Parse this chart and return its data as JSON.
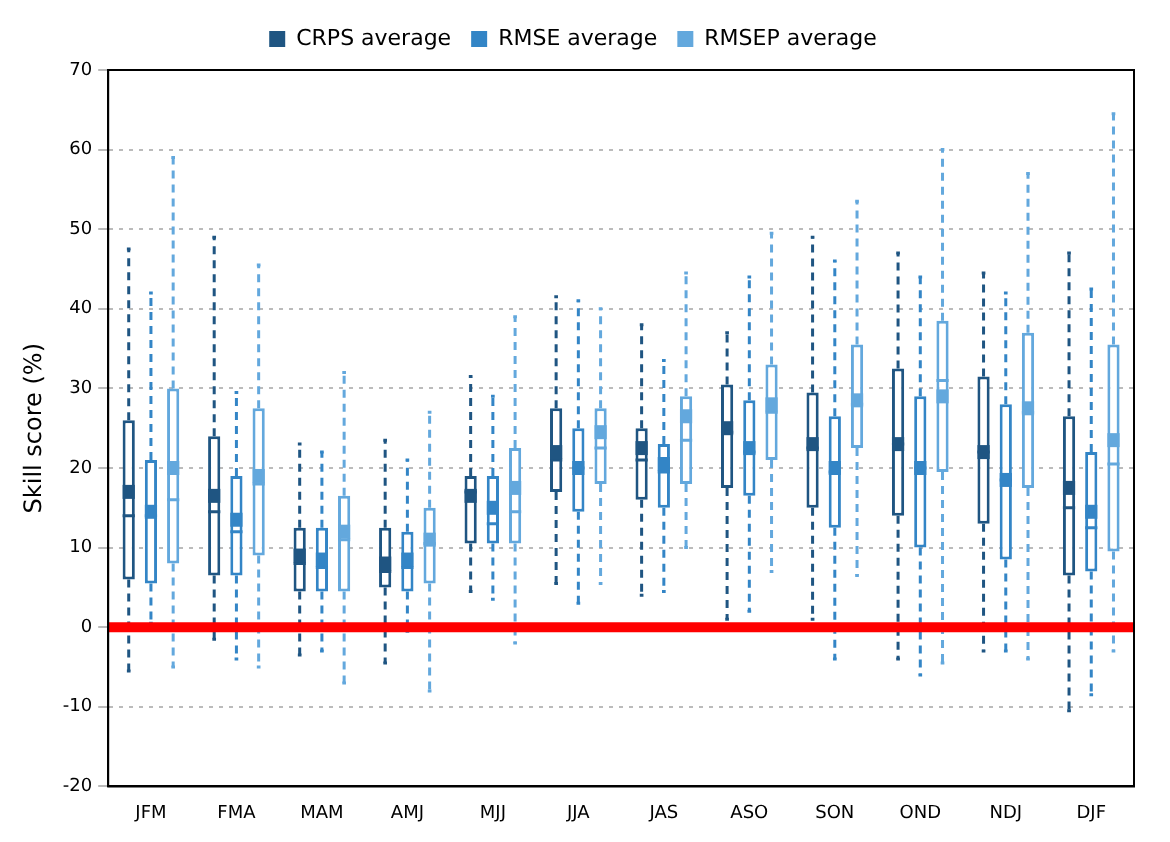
{
  "chart_data": {
    "type": "box",
    "ylabel": "Skill score (%)",
    "categories": [
      "JFM",
      "FMA",
      "MAM",
      "AMJ",
      "MJJ",
      "JJA",
      "JAS",
      "ASO",
      "SON",
      "OND",
      "NDJ",
      "DJF"
    ],
    "series": [
      {
        "name": "CRPS average",
        "color": "#1f5582",
        "boxes": [
          {
            "low": -5.5,
            "q1": 6,
            "median": 14,
            "q3": 26,
            "high": 47.5,
            "mean": 17
          },
          {
            "low": -1.5,
            "q1": 6.5,
            "median": 14.5,
            "q3": 24,
            "high": 49,
            "mean": 16.5
          },
          {
            "low": -3.5,
            "q1": 4.5,
            "median": 8,
            "q3": 12.5,
            "high": 23,
            "mean": 9
          },
          {
            "low": -4.5,
            "q1": 5,
            "median": 7,
            "q3": 12.5,
            "high": 23.5,
            "mean": 8
          },
          {
            "low": 4.5,
            "q1": 10.5,
            "median": 17,
            "q3": 19,
            "high": 31.5,
            "mean": 16.5
          },
          {
            "low": 5.5,
            "q1": 17,
            "median": 21,
            "q3": 27.5,
            "high": 41.5,
            "mean": 22
          },
          {
            "low": 4,
            "q1": 16,
            "median": 21,
            "q3": 25,
            "high": 38,
            "mean": 22.5
          },
          {
            "low": 1,
            "q1": 17.5,
            "median": 24.5,
            "q3": 30.5,
            "high": 37,
            "mean": 25
          },
          {
            "low": 1,
            "q1": 15,
            "median": 22.5,
            "q3": 29.5,
            "high": 49,
            "mean": 23
          },
          {
            "low": -4,
            "q1": 14,
            "median": 23,
            "q3": 32.5,
            "high": 47,
            "mean": 23
          },
          {
            "low": -3,
            "q1": 13,
            "median": 22,
            "q3": 31.5,
            "high": 44.5,
            "mean": 22
          },
          {
            "low": -10.5,
            "q1": 6.5,
            "median": 15,
            "q3": 26.5,
            "high": 47,
            "mean": 17.5
          }
        ]
      },
      {
        "name": "RMSE average",
        "color": "#3385c6",
        "boxes": [
          {
            "low": 0.5,
            "q1": 5.5,
            "median": 14,
            "q3": 21,
            "high": 42,
            "mean": 14.5
          },
          {
            "low": -4,
            "q1": 6.5,
            "median": 12,
            "q3": 19,
            "high": 29.5,
            "mean": 13.5
          },
          {
            "low": -3,
            "q1": 4.5,
            "median": 7.5,
            "q3": 12.5,
            "high": 22,
            "mean": 8.5
          },
          {
            "low": -0.5,
            "q1": 4.5,
            "median": 7.5,
            "q3": 12,
            "high": 21,
            "mean": 8.5
          },
          {
            "low": 3.5,
            "q1": 10.5,
            "median": 13,
            "q3": 19,
            "high": 29,
            "mean": 15
          },
          {
            "low": 3,
            "q1": 14.5,
            "median": 20,
            "q3": 25,
            "high": 41,
            "mean": 20
          },
          {
            "low": 4.5,
            "q1": 15,
            "median": 19.5,
            "q3": 23,
            "high": 33.5,
            "mean": 20.5
          },
          {
            "low": 2,
            "q1": 16.5,
            "median": 22,
            "q3": 28.5,
            "high": 44,
            "mean": 22.5
          },
          {
            "low": -4,
            "q1": 12.5,
            "median": 19.5,
            "q3": 26.5,
            "high": 46,
            "mean": 20
          },
          {
            "low": -6,
            "q1": 10,
            "median": 20,
            "q3": 29,
            "high": 44,
            "mean": 20
          },
          {
            "low": -3,
            "q1": 8.5,
            "median": 18.5,
            "q3": 28,
            "high": 42,
            "mean": 18.5
          },
          {
            "low": -8.5,
            "q1": 7,
            "median": 12.5,
            "q3": 22,
            "high": 42.5,
            "mean": 14.5
          }
        ]
      },
      {
        "name": "RMSEP average",
        "color": "#63a8dd",
        "boxes": [
          {
            "low": -5,
            "q1": 8,
            "median": 16,
            "q3": 30,
            "high": 59,
            "mean": 20
          },
          {
            "low": -5,
            "q1": 9,
            "median": 18,
            "q3": 27.5,
            "high": 45.5,
            "mean": 19
          },
          {
            "low": -7,
            "q1": 4.5,
            "median": 11,
            "q3": 16.5,
            "high": 32,
            "mean": 12
          },
          {
            "low": -8,
            "q1": 5.5,
            "median": 10.5,
            "q3": 15,
            "high": 27,
            "mean": 11
          },
          {
            "low": -2,
            "q1": 10.5,
            "median": 14.5,
            "q3": 22.5,
            "high": 39,
            "mean": 17.5
          },
          {
            "low": 5.5,
            "q1": 18,
            "median": 22.5,
            "q3": 27.5,
            "high": 40,
            "mean": 24.5
          },
          {
            "low": 10,
            "q1": 18,
            "median": 23.5,
            "q3": 29,
            "high": 44.5,
            "mean": 26.5
          },
          {
            "low": 7,
            "q1": 21,
            "median": 27,
            "q3": 33,
            "high": 49.5,
            "mean": 28
          },
          {
            "low": 6.5,
            "q1": 22.5,
            "median": 28,
            "q3": 35.5,
            "high": 53.5,
            "mean": 28.5
          },
          {
            "low": -4.5,
            "q1": 19.5,
            "median": 31,
            "q3": 38.5,
            "high": 60,
            "mean": 29
          },
          {
            "low": -4,
            "q1": 17.5,
            "median": 27,
            "q3": 37,
            "high": 57,
            "mean": 27.5
          },
          {
            "low": -3,
            "q1": 9.5,
            "median": 20.5,
            "q3": 35.5,
            "high": 64.5,
            "mean": 23.5
          }
        ]
      }
    ],
    "ylim": [
      -20,
      70
    ],
    "yticks": [
      -20,
      -10,
      0,
      10,
      20,
      30,
      40,
      50,
      60,
      70
    ],
    "grid": "y",
    "legend": "top",
    "ref_lines": [
      {
        "axis": "y",
        "value": 0,
        "color": "#ff0000"
      }
    ]
  }
}
